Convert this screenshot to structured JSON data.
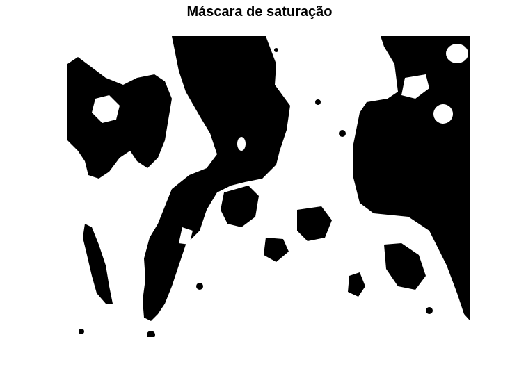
{
  "figure": {
    "title": "Máscara de saturação"
  },
  "image": {
    "kind": "binary-mask",
    "colors": {
      "foreground": "#000000",
      "background": "#ffffff"
    }
  }
}
